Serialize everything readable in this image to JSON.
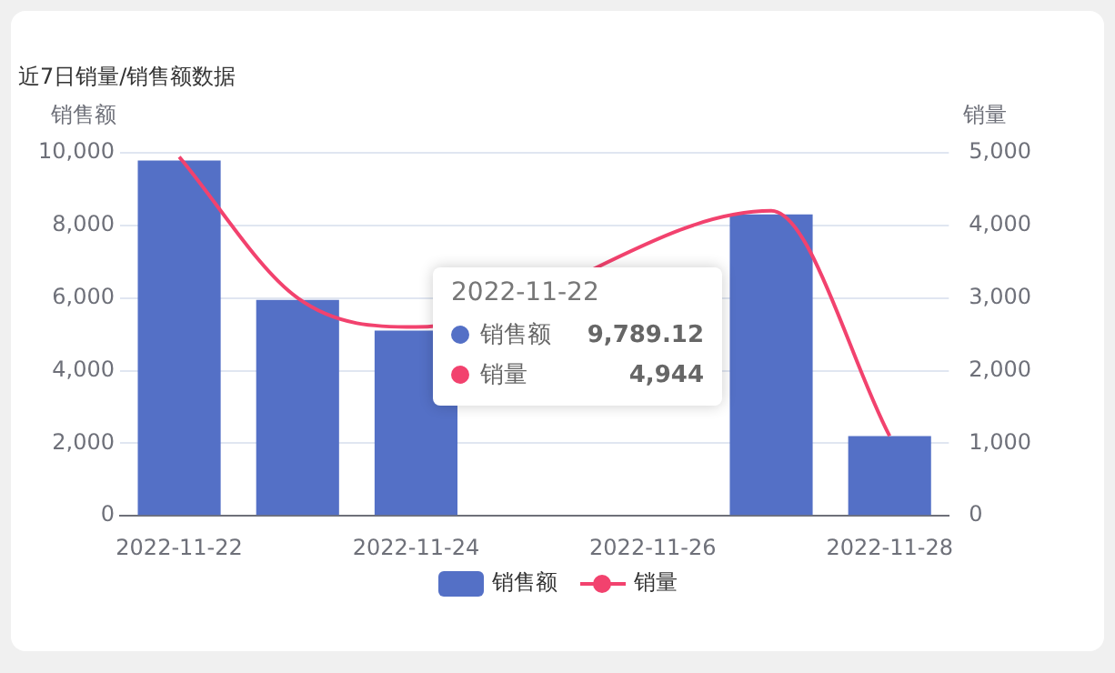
{
  "chart_data": {
    "type": "bar",
    "title": "近7日销量/销售额数据",
    "ylabel": "销售额",
    "y2label": "销量",
    "categories": [
      "2022-11-22",
      null,
      "2022-11-24",
      null,
      "2022-11-26",
      null,
      "2022-11-28"
    ],
    "series": [
      {
        "name": "销售额",
        "color": "#5470c6",
        "values": [
          9789.12,
          5950,
          5100,
          null,
          null,
          8300,
          2200
        ]
      },
      {
        "name": "销量",
        "type": "line",
        "axis": "y2",
        "color": "#f2426e",
        "marker": "none",
        "values": [
          4944,
          3000,
          2600,
          null,
          null,
          4200,
          1100
        ]
      }
    ],
    "ylim": [
      0,
      10000
    ],
    "yticks": [
      {
        "value": 0,
        "label": "0"
      },
      {
        "value": 2000,
        "label": "2,000"
      },
      {
        "value": 4000,
        "label": "4,000"
      },
      {
        "value": 6000,
        "label": "6,000"
      },
      {
        "value": 8000,
        "label": "8,000"
      },
      {
        "value": 10000,
        "label": "10,000"
      }
    ],
    "y2lim": [
      0,
      5000
    ],
    "y2ticks": [
      {
        "value": 0,
        "label": "0"
      },
      {
        "value": 1000,
        "label": "1,000"
      },
      {
        "value": 2000,
        "label": "2,000"
      },
      {
        "value": 3000,
        "label": "3,000"
      },
      {
        "value": 4000,
        "label": "4,000"
      },
      {
        "value": 5000,
        "label": "5,000"
      }
    ],
    "grid": "y",
    "legend": "bottom",
    "annotations": [
      "2022-11-22",
      "9,789.12",
      "4,944"
    ]
  }
}
